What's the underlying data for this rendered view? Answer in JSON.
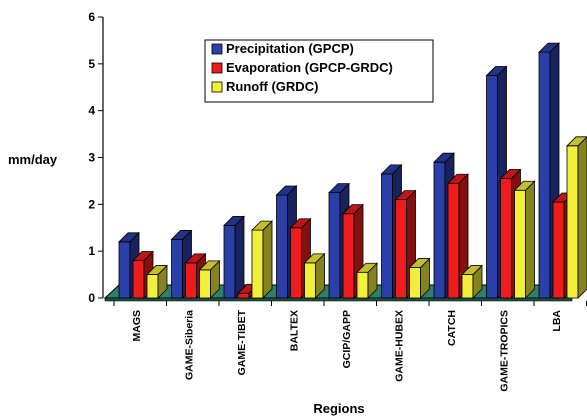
{
  "chart_data": {
    "type": "bar",
    "categories": [
      "MAGS",
      "GAME-Siberia",
      "GAME-TIBET",
      "BALTEX",
      "GCIP/GAPP",
      "GAME-HUBEX",
      "CATCH",
      "GAME-TROPICS",
      "LBA"
    ],
    "series": [
      {
        "name": "Precipitation (GPCP)",
        "color": "#2a3fa8",
        "values": [
          1.2,
          1.25,
          1.55,
          2.2,
          2.25,
          2.65,
          2.9,
          4.75,
          5.25
        ]
      },
      {
        "name": "Evaporation (GPCP-GRDC)",
        "color": "#ee1c1c",
        "values": [
          0.8,
          0.75,
          0.1,
          1.5,
          1.8,
          2.1,
          2.45,
          2.55,
          2.05
        ]
      },
      {
        "name": "Runoff (GRDC)",
        "color": "#f2ef3a",
        "values": [
          0.5,
          0.6,
          1.45,
          0.75,
          0.55,
          0.65,
          0.5,
          2.3,
          3.25
        ]
      }
    ],
    "ylim": [
      0,
      6
    ],
    "yticks": [
      0,
      1,
      2,
      3,
      4,
      5,
      6
    ],
    "ylabel": "mm/day",
    "xlabel": "Regions",
    "legend_position": "top-center",
    "style": "3d-clustered-bar",
    "floor_color": "#2e7f6c"
  }
}
